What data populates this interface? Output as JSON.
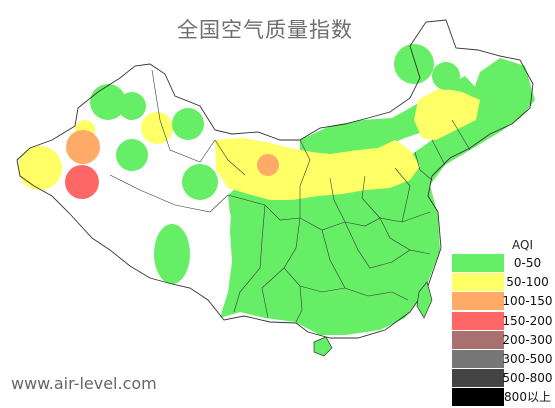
{
  "header": {
    "title": "全国空气质量指数"
  },
  "legend": {
    "title": "AQI",
    "items": [
      {
        "label": "0-50",
        "color": "#66ee66"
      },
      {
        "label": "50-100",
        "color": "#ffff66"
      },
      {
        "label": "100-150",
        "color": "#ffaa66"
      },
      {
        "label": "150-200",
        "color": "#ff6666"
      },
      {
        "label": "200-300",
        "color": "#aa6f6f"
      },
      {
        "label": "300-500",
        "color": "#777777"
      },
      {
        "label": "500-800",
        "color": "#444444"
      },
      {
        "label": "800以上",
        "color": "#000000"
      }
    ]
  },
  "footer": {
    "site": "www.air-level.com"
  }
}
